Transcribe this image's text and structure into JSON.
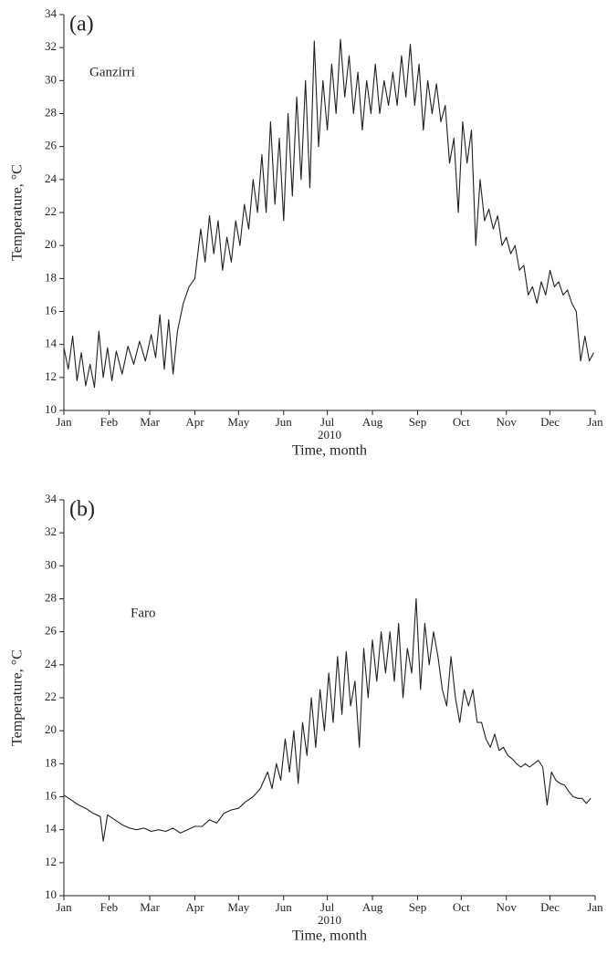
{
  "chart_data": [
    {
      "type": "line",
      "panel_label": "(a)",
      "annotation": "Ganzirri",
      "ylabel": "Temperature, °C",
      "xlabel": "Time, month",
      "x_sublabel": "2010",
      "color": "#231f20",
      "x": [
        0,
        3,
        6,
        9,
        12,
        15,
        18,
        21,
        24,
        27,
        30,
        33,
        36,
        40,
        44,
        48,
        52,
        56,
        60,
        63,
        66,
        69,
        72,
        75,
        78,
        82,
        86,
        90,
        94,
        97,
        100,
        103,
        106,
        109,
        112,
        115,
        118,
        121,
        124,
        127,
        130,
        133,
        136,
        139,
        142,
        145,
        148,
        151,
        154,
        157,
        160,
        163,
        166,
        169,
        172,
        175,
        178,
        181,
        184,
        187,
        190,
        193,
        196,
        199,
        202,
        205,
        208,
        211,
        214,
        217,
        220,
        223,
        226,
        229,
        232,
        235,
        238,
        241,
        244,
        247,
        250,
        253,
        256,
        259,
        262,
        265,
        268,
        271,
        274,
        277,
        280,
        283,
        286,
        289,
        292,
        295,
        298,
        301,
        304,
        307,
        310,
        313,
        316,
        319,
        322,
        325,
        328,
        331,
        334,
        337,
        340,
        343,
        346,
        349,
        352,
        355,
        358,
        361,
        364
      ],
      "values": [
        13.8,
        12.5,
        14.5,
        11.8,
        13.5,
        11.5,
        12.8,
        11.4,
        14.8,
        12.0,
        13.8,
        11.8,
        13.6,
        12.2,
        13.9,
        12.8,
        14.2,
        13.0,
        14.6,
        13.2,
        15.8,
        12.5,
        15.5,
        12.2,
        14.8,
        16.5,
        17.5,
        18.0,
        21.0,
        19.0,
        21.8,
        19.5,
        21.5,
        18.5,
        20.5,
        19.0,
        21.5,
        20.0,
        22.5,
        21.0,
        24.0,
        22.0,
        25.5,
        22.0,
        27.5,
        22.5,
        26.5,
        21.5,
        28.0,
        23.0,
        29.0,
        24.0,
        30.0,
        23.5,
        32.4,
        26.0,
        30.0,
        27.0,
        31.0,
        28.0,
        32.5,
        29.0,
        31.5,
        28.0,
        30.5,
        27.0,
        30.0,
        28.0,
        31.0,
        28.0,
        30.0,
        28.5,
        30.5,
        28.5,
        31.5,
        29.0,
        32.2,
        28.5,
        31.0,
        27.0,
        30.0,
        28.0,
        29.8,
        27.5,
        28.5,
        25.0,
        26.5,
        22.0,
        27.5,
        25.0,
        27.0,
        20.0,
        24.0,
        21.5,
        22.2,
        21.0,
        21.8,
        20.0,
        20.5,
        19.5,
        20.0,
        18.5,
        18.8,
        17.0,
        17.5,
        16.5,
        17.8,
        17.0,
        18.5,
        17.5,
        17.8,
        17.0,
        17.3,
        16.5,
        16.0,
        13.0,
        14.5,
        13.0,
        13.5
      ],
      "xlim": [
        0,
        365
      ],
      "ylim": [
        10,
        34
      ],
      "xticks": [
        {
          "value": 0,
          "label": "Jan"
        },
        {
          "value": 31,
          "label": "Feb"
        },
        {
          "value": 59,
          "label": "Mar"
        },
        {
          "value": 90,
          "label": "Apr"
        },
        {
          "value": 120,
          "label": "May"
        },
        {
          "value": 151,
          "label": "Jun"
        },
        {
          "value": 181,
          "label": "Jul"
        },
        {
          "value": 212,
          "label": "Aug"
        },
        {
          "value": 243,
          "label": "Sep"
        },
        {
          "value": 273,
          "label": "Oct"
        },
        {
          "value": 304,
          "label": "Nov"
        },
        {
          "value": 334,
          "label": "Dec"
        },
        {
          "value": 365,
          "label": "Jan"
        }
      ],
      "yticks": [
        10,
        12,
        14,
        16,
        18,
        20,
        22,
        24,
        26,
        28,
        30,
        32,
        34
      ]
    },
    {
      "type": "line",
      "panel_label": "(b)",
      "annotation": "Faro",
      "ylabel": "Temperature, °C",
      "xlabel": "Time, month",
      "x_sublabel": "2010",
      "color": "#231f20",
      "x": [
        0,
        5,
        10,
        15,
        20,
        25,
        27,
        30,
        35,
        40,
        45,
        50,
        55,
        60,
        65,
        70,
        75,
        80,
        85,
        90,
        95,
        100,
        105,
        110,
        115,
        120,
        125,
        130,
        135,
        140,
        143,
        146,
        149,
        152,
        155,
        158,
        161,
        164,
        167,
        170,
        173,
        176,
        179,
        182,
        185,
        188,
        191,
        194,
        197,
        200,
        203,
        206,
        209,
        212,
        215,
        218,
        221,
        224,
        227,
        230,
        233,
        236,
        239,
        242,
        245,
        248,
        251,
        254,
        257,
        260,
        263,
        266,
        269,
        272,
        275,
        278,
        281,
        284,
        287,
        290,
        293,
        296,
        299,
        302,
        305,
        308,
        311,
        314,
        317,
        320,
        323,
        326,
        329,
        332,
        335,
        338,
        341,
        344,
        347,
        350,
        353,
        356,
        359,
        362
      ],
      "values": [
        16.1,
        15.8,
        15.5,
        15.3,
        15.0,
        14.8,
        13.3,
        14.9,
        14.6,
        14.3,
        14.1,
        14.0,
        14.1,
        13.9,
        14.0,
        13.9,
        14.1,
        13.8,
        14.0,
        14.2,
        14.2,
        14.6,
        14.4,
        15.0,
        15.2,
        15.3,
        15.7,
        16.0,
        16.5,
        17.5,
        16.5,
        18.0,
        17.0,
        19.5,
        17.5,
        20.0,
        16.8,
        20.5,
        18.5,
        22.0,
        19.0,
        22.5,
        20.0,
        23.5,
        20.5,
        24.5,
        21.0,
        24.8,
        21.5,
        23.0,
        19.0,
        25.0,
        22.0,
        25.5,
        23.0,
        26.0,
        23.5,
        26.0,
        23.0,
        26.5,
        22.0,
        25.0,
        23.5,
        28.0,
        22.5,
        26.5,
        24.0,
        26.0,
        24.5,
        22.5,
        21.5,
        24.5,
        22.0,
        20.5,
        22.5,
        21.5,
        22.5,
        20.5,
        20.5,
        19.5,
        19.0,
        19.8,
        18.8,
        19.0,
        18.5,
        18.3,
        18.0,
        17.8,
        18.0,
        17.8,
        18.0,
        18.2,
        17.8,
        15.5,
        17.5,
        17.0,
        16.8,
        16.7,
        16.3,
        16.0,
        15.9,
        15.9,
        15.6,
        15.9
      ],
      "xlim": [
        0,
        365
      ],
      "ylim": [
        10,
        34
      ],
      "xticks": [
        {
          "value": 0,
          "label": "Jan"
        },
        {
          "value": 31,
          "label": "Feb"
        },
        {
          "value": 59,
          "label": "Mar"
        },
        {
          "value": 90,
          "label": "Apr"
        },
        {
          "value": 120,
          "label": "May"
        },
        {
          "value": 151,
          "label": "Jun"
        },
        {
          "value": 181,
          "label": "Jul"
        },
        {
          "value": 212,
          "label": "Aug"
        },
        {
          "value": 243,
          "label": "Sep"
        },
        {
          "value": 273,
          "label": "Oct"
        },
        {
          "value": 304,
          "label": "Nov"
        },
        {
          "value": 334,
          "label": "Dec"
        },
        {
          "value": 365,
          "label": "Jan"
        }
      ],
      "yticks": [
        10,
        12,
        14,
        16,
        18,
        20,
        22,
        24,
        26,
        28,
        30,
        32,
        34
      ]
    }
  ]
}
